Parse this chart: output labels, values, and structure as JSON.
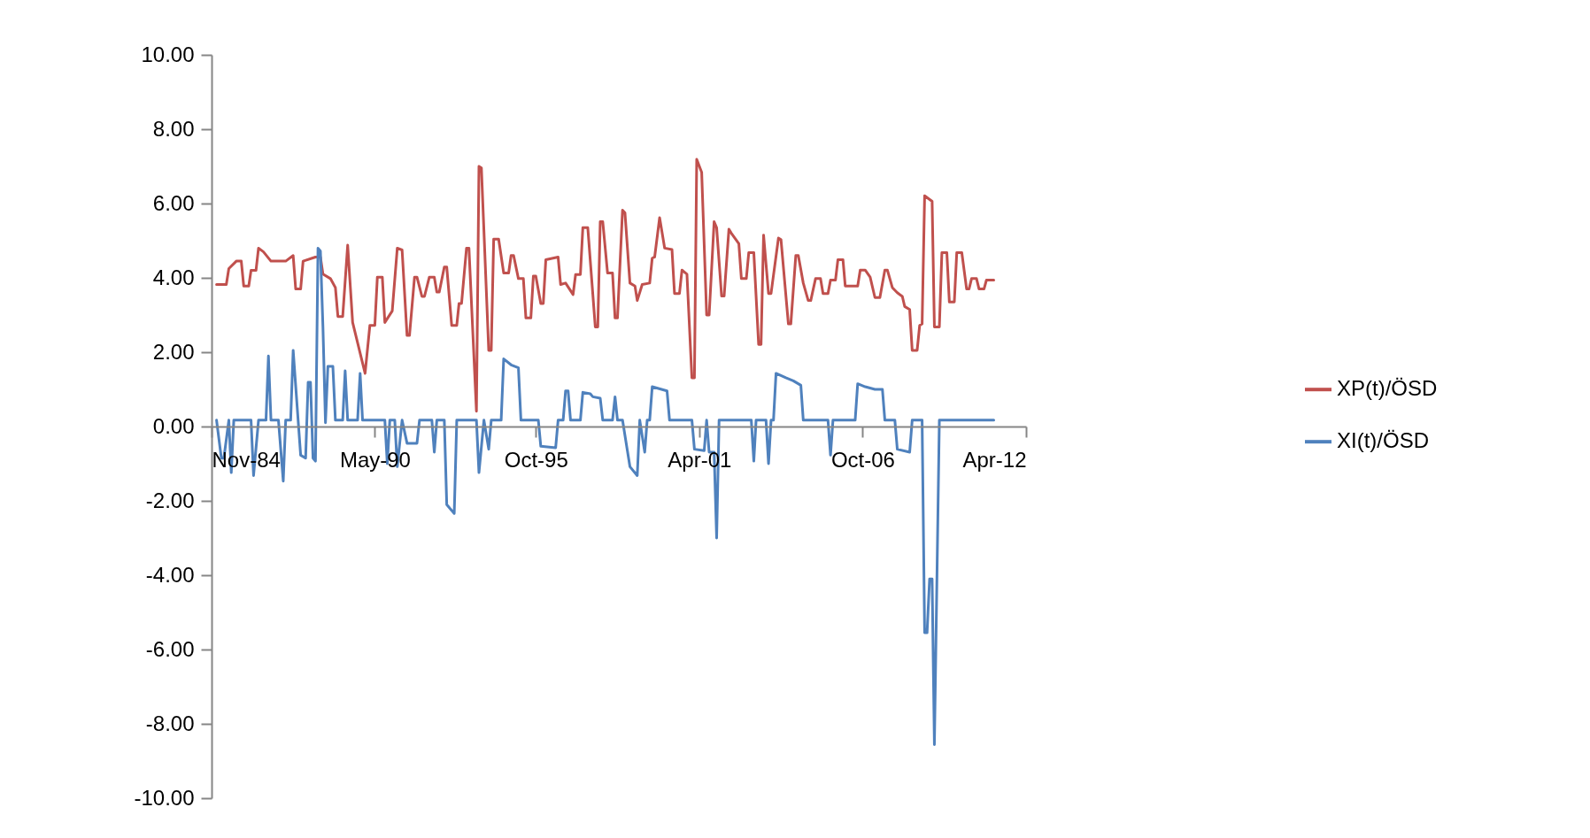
{
  "chart_data": {
    "type": "line",
    "xlim": [
      "1984-11",
      "2012-04"
    ],
    "xticks": [
      {
        "value": "1984-11",
        "label": "Nov-84"
      },
      {
        "value": "1990-05",
        "label": "May-90"
      },
      {
        "value": "1995-10",
        "label": "Oct-95"
      },
      {
        "value": "2001-04",
        "label": "Apr-01"
      },
      {
        "value": "2006-10",
        "label": "Oct-06"
      },
      {
        "value": "2012-04",
        "label": "Apr-12"
      }
    ],
    "ylim": [
      -10,
      10
    ],
    "yticks": [
      {
        "value": -10,
        "label": "-10.00"
      },
      {
        "value": -8,
        "label": "-8.00"
      },
      {
        "value": -6,
        "label": "-6.00"
      },
      {
        "value": -4,
        "label": "-4.00"
      },
      {
        "value": -2,
        "label": "-2.00"
      },
      {
        "value": 0,
        "label": "0.00"
      },
      {
        "value": 2,
        "label": "2.00"
      },
      {
        "value": 4,
        "label": "4.00"
      },
      {
        "value": 6,
        "label": "6.00"
      },
      {
        "value": 8,
        "label": "8.00"
      },
      {
        "value": 10,
        "label": "10.00"
      }
    ],
    "grid": false,
    "legend": "right",
    "marker": "none",
    "line_style": "solid",
    "series": [
      {
        "name": "XP(t)/ÖSD",
        "color": "#c0504d",
        "x": [
          "1985-01",
          "1985-05",
          "1985-06",
          "1985-09",
          "1985-11",
          "1985-12",
          "1986-02",
          "1986-03",
          "1986-05",
          "1986-06",
          "1986-08",
          "1986-11",
          "1987-05",
          "1987-08",
          "1987-09",
          "1987-11",
          "1987-12",
          "1988-05",
          "1988-07",
          "1988-08",
          "1988-11",
          "1989-01",
          "1989-02",
          "1989-04",
          "1989-06",
          "1989-08",
          "1990-01",
          "1990-03",
          "1990-05",
          "1990-06",
          "1990-08",
          "1990-09",
          "1990-12",
          "1991-02",
          "1991-04",
          "1991-06",
          "1991-07",
          "1991-09",
          "1991-10",
          "1991-12",
          "1992-01",
          "1992-03",
          "1992-05",
          "1992-06",
          "1992-07",
          "1992-09",
          "1992-10",
          "1992-12",
          "1993-02",
          "1993-03",
          "1993-04",
          "1993-06",
          "1993-07",
          "1993-10",
          "1993-11",
          "1993-12",
          "1994-03",
          "1994-04",
          "1994-05",
          "1994-07",
          "1994-09",
          "1994-11",
          "1994-12",
          "1995-01",
          "1995-03",
          "1995-05",
          "1995-06",
          "1995-08",
          "1995-09",
          "1995-10",
          "1995-12",
          "1996-01",
          "1996-02",
          "1996-07",
          "1996-08",
          "1996-10",
          "1997-01",
          "1997-02",
          "1997-04",
          "1997-05",
          "1997-07",
          "1997-10",
          "1997-11",
          "1997-12",
          "1998-01",
          "1998-03",
          "1998-05",
          "1998-06",
          "1998-07",
          "1998-09",
          "1998-10",
          "1998-12",
          "1999-02",
          "1999-03",
          "1999-05",
          "1999-08",
          "1999-09",
          "1999-10",
          "1999-12",
          "2000-02",
          "2000-05",
          "2000-06",
          "2000-08",
          "2000-09",
          "2000-11",
          "2001-01",
          "2001-02",
          "2001-03",
          "2001-05",
          "2001-07",
          "2001-08",
          "2001-10",
          "2001-11",
          "2002-01",
          "2002-02",
          "2002-04",
          "2002-05",
          "2002-08",
          "2002-09",
          "2002-11",
          "2002-12",
          "2003-02",
          "2003-04",
          "2003-05",
          "2003-06",
          "2003-08",
          "2003-09",
          "2003-12",
          "2004-01",
          "2004-04",
          "2004-05",
          "2004-07",
          "2004-08",
          "2004-10",
          "2004-12",
          "2005-01",
          "2005-03",
          "2005-05",
          "2005-06",
          "2005-08",
          "2005-09",
          "2005-11",
          "2005-12",
          "2006-02",
          "2006-03",
          "2006-08",
          "2006-09",
          "2006-11",
          "2007-01",
          "2007-03",
          "2007-05",
          "2007-07",
          "2007-08",
          "2007-10",
          "2007-12",
          "2008-02",
          "2008-03",
          "2008-05",
          "2008-06",
          "2008-08",
          "2008-09",
          "2008-10",
          "2008-11",
          "2009-02",
          "2009-03",
          "2009-05",
          "2009-06",
          "2009-08",
          "2009-09",
          "2009-11",
          "2009-12",
          "2010-02",
          "2010-04",
          "2010-05",
          "2010-06",
          "2010-08",
          "2010-09",
          "2010-11",
          "2010-12",
          "2011-03"
        ],
        "values": [
          3.82,
          3.82,
          4.25,
          4.45,
          4.45,
          3.78,
          3.78,
          4.2,
          4.2,
          4.8,
          4.7,
          4.45,
          4.45,
          4.6,
          3.7,
          3.7,
          4.45,
          4.56,
          4.56,
          4.1,
          3.98,
          3.74,
          2.96,
          2.96,
          4.88,
          2.8,
          1.43,
          2.72,
          2.72,
          4.02,
          4.02,
          2.8,
          3.11,
          4.8,
          4.75,
          2.45,
          2.45,
          4.02,
          4.02,
          3.5,
          3.5,
          4.02,
          4.02,
          3.62,
          3.62,
          4.29,
          4.29,
          2.72,
          2.72,
          3.31,
          3.31,
          4.8,
          4.8,
          0.41,
          7.0,
          6.96,
          2.05,
          2.05,
          5.04,
          5.04,
          4.13,
          4.13,
          4.6,
          4.6,
          3.98,
          3.98,
          2.92,
          2.92,
          4.05,
          4.05,
          3.31,
          3.31,
          4.49,
          4.56,
          3.82,
          3.86,
          3.55,
          4.09,
          4.09,
          5.35,
          5.35,
          2.68,
          2.68,
          5.51,
          5.51,
          4.13,
          4.13,
          2.92,
          2.92,
          5.82,
          5.75,
          3.86,
          3.78,
          3.39,
          3.82,
          3.86,
          4.53,
          4.56,
          5.62,
          4.8,
          4.76,
          3.58,
          3.58,
          4.21,
          4.1,
          1.31,
          1.31,
          7.19,
          6.84,
          3.0,
          3.0,
          5.51,
          5.35,
          3.51,
          3.51,
          5.31,
          5.2,
          4.92,
          3.98,
          3.98,
          4.68,
          4.68,
          2.21,
          2.21,
          5.15,
          3.58,
          3.58,
          5.07,
          5.03,
          2.76,
          2.76,
          4.6,
          4.6,
          3.86,
          3.39,
          3.39,
          3.98,
          3.98,
          3.58,
          3.58,
          3.94,
          3.94,
          4.49,
          4.49,
          3.78,
          3.78,
          4.21,
          4.21,
          4.02,
          3.47,
          3.47,
          4.21,
          4.21,
          3.74,
          3.6,
          3.5,
          3.23,
          3.15,
          2.05,
          2.05,
          2.72,
          2.76,
          6.21,
          6.06,
          2.68,
          2.68,
          4.68,
          4.68,
          3.35,
          3.35,
          4.68,
          4.68,
          3.7,
          3.7,
          3.98,
          3.98,
          3.7,
          3.7,
          3.94,
          3.94
        ]
      },
      {
        "name": "XI(t)/ÖSD",
        "color": "#4f81bd",
        "x": [
          "1985-01",
          "1985-03",
          "1985-04",
          "1985-06",
          "1985-07",
          "1985-08",
          "1986-03",
          "1986-04",
          "1986-06",
          "1986-09",
          "1986-10",
          "1986-11",
          "1987-02",
          "1987-04",
          "1987-05",
          "1987-07",
          "1987-08",
          "1987-10",
          "1987-11",
          "1988-01",
          "1988-02",
          "1988-03",
          "1988-04",
          "1988-05",
          "1988-06",
          "1988-07",
          "1988-08",
          "1988-09",
          "1988-10",
          "1988-12",
          "1989-01",
          "1989-04",
          "1989-05",
          "1989-06",
          "1989-10",
          "1989-11",
          "1989-12",
          "1990-09",
          "1990-10",
          "1990-11",
          "1991-01",
          "1991-02",
          "1991-04",
          "1991-06",
          "1991-10",
          "1991-11",
          "1992-04",
          "1992-05",
          "1992-06",
          "1992-09",
          "1992-10",
          "1993-01",
          "1993-02",
          "1993-10",
          "1993-11",
          "1994-01",
          "1994-03",
          "1994-04",
          "1994-08",
          "1994-09",
          "1994-12",
          "1995-03",
          "1995-04",
          "1995-11",
          "1995-12",
          "1996-06",
          "1996-07",
          "1996-09",
          "1996-10",
          "1996-11",
          "1996-12",
          "1997-04",
          "1997-05",
          "1997-08",
          "1997-09",
          "1997-12",
          "1998-01",
          "1998-05",
          "1998-06",
          "1998-07",
          "1998-09",
          "1998-12",
          "1999-03",
          "1999-04",
          "1999-06",
          "1999-07",
          "1999-08",
          "1999-09",
          "2000-03",
          "2000-04",
          "2001-01",
          "2001-02",
          "2001-06",
          "2001-07",
          "2001-08",
          "2001-10",
          "2001-11",
          "2001-12",
          "2003-01",
          "2003-02",
          "2003-03",
          "2003-07",
          "2003-08",
          "2003-09",
          "2003-10",
          "2003-11",
          "2004-03",
          "2004-06",
          "2004-09",
          "2004-10",
          "2005-08",
          "2005-09",
          "2005-10",
          "2006-07",
          "2006-08",
          "2006-11",
          "2007-03",
          "2007-06",
          "2007-07",
          "2007-11",
          "2007-12",
          "2008-05",
          "2008-06",
          "2008-10",
          "2008-11",
          "2008-12",
          "2009-01",
          "2009-02",
          "2009-03",
          "2009-05",
          "2011-03"
        ],
        "values": [
          0.17,
          -0.85,
          -0.85,
          0.17,
          -1.24,
          0.17,
          0.17,
          -1.32,
          0.17,
          0.17,
          1.9,
          0.17,
          0.17,
          -1.47,
          0.17,
          0.17,
          2.05,
          0.17,
          -0.77,
          -0.85,
          1.19,
          1.19,
          -0.85,
          -0.93,
          4.8,
          4.72,
          2.68,
          0.1,
          1.62,
          1.62,
          0.17,
          0.17,
          1.5,
          0.17,
          0.17,
          1.43,
          0.17,
          0.17,
          -1.0,
          0.17,
          0.17,
          -1.08,
          0.17,
          -0.45,
          -0.45,
          0.17,
          0.17,
          -0.69,
          0.17,
          0.17,
          -2.1,
          -2.34,
          0.17,
          0.17,
          -1.24,
          0.17,
          -0.61,
          0.17,
          0.17,
          1.82,
          1.66,
          1.58,
          0.17,
          0.17,
          -0.53,
          -0.57,
          0.17,
          0.17,
          0.96,
          0.96,
          0.17,
          0.17,
          0.92,
          0.88,
          0.8,
          0.76,
          0.17,
          0.17,
          0.8,
          0.17,
          0.17,
          -1.08,
          -1.32,
          0.17,
          -0.69,
          0.17,
          0.17,
          1.07,
          0.96,
          0.17,
          0.17,
          -0.61,
          -0.65,
          0.17,
          -0.69,
          -0.69,
          -3.0,
          0.17,
          0.17,
          -0.93,
          0.17,
          0.17,
          -1.0,
          0.17,
          0.17,
          1.43,
          1.31,
          1.23,
          1.11,
          0.17,
          0.17,
          -0.77,
          0.17,
          0.17,
          1.15,
          1.07,
          1.0,
          1.0,
          0.17,
          0.17,
          -0.61,
          -0.69,
          0.17,
          0.17,
          -5.55,
          -5.55,
          -4.1,
          -4.1,
          -8.56,
          0.17,
          0.17
        ]
      }
    ]
  }
}
